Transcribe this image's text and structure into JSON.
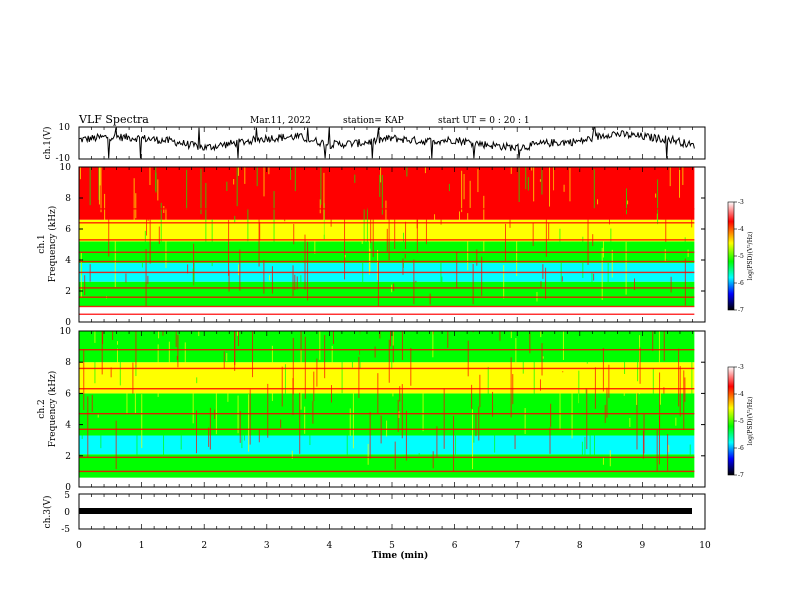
{
  "header": {
    "title": "VLF Spectra",
    "date": "Mar.11, 2022",
    "station": "station= KAP",
    "start": "start  UT =   0  : 20 : 1"
  },
  "colors": {
    "spectrum": [
      "#ffffff",
      "#ff0000",
      "#ffff00",
      "#00ff00",
      "#00ffff",
      "#0000ff",
      "#000000"
    ],
    "trace": "#000000"
  },
  "chart_data": [
    {
      "id": "ch1-waveform",
      "type": "line",
      "ylabel": "ch.1(V)",
      "ylim": [
        -10,
        10
      ],
      "yticks": [
        "10",
        "-10"
      ],
      "xlim": [
        0,
        9.83
      ],
      "x": [
        0,
        0.5,
        1,
        1.5,
        2,
        2.5,
        3,
        3.5,
        4,
        4.5,
        5,
        5.5,
        6,
        6.5,
        7,
        7.5,
        8,
        8.5,
        9,
        9.5,
        9.83
      ],
      "y": [
        2,
        4,
        3,
        1,
        -3,
        0,
        3,
        4,
        -1,
        0,
        3,
        1,
        2,
        -1,
        -3,
        0,
        1,
        6,
        4,
        2,
        -2
      ],
      "description": "noisy signal trace, roughly -6 to +8 V with occasional spikes"
    },
    {
      "id": "ch1-spectrogram",
      "type": "heatmap",
      "ylabel": "ch.1\nFrequency (kHz)",
      "ylim": [
        0,
        10
      ],
      "yticks": [
        "0",
        "2",
        "4",
        "6",
        "8",
        "10"
      ],
      "xlim": [
        0,
        9.83
      ],
      "colorbar": {
        "label": "log(PSD)(V²/Hz)",
        "range": [
          -7,
          -3
        ],
        "ticks": [
          "-3",
          "-4",
          "-5",
          "-6",
          "-7"
        ]
      },
      "bands": [
        {
          "f": [
            0,
            1
          ],
          "color": "#ffffff"
        },
        {
          "f": [
            1,
            2.6
          ],
          "color": "#00ff00"
        },
        {
          "f": [
            2.6,
            3.8
          ],
          "color": "#00ffff"
        },
        {
          "f": [
            3.8,
            5.2
          ],
          "color": "#00ff00"
        },
        {
          "f": [
            5.2,
            6.6
          ],
          "color": "#ffff00"
        },
        {
          "f": [
            6.6,
            10
          ],
          "color": "#ff0000"
        }
      ],
      "lines_khz": [
        0.5,
        1.0,
        1.6,
        2.2,
        3.2,
        3.9,
        4.5,
        5.3,
        6.4,
        7.3
      ]
    },
    {
      "id": "ch2-spectrogram",
      "type": "heatmap",
      "ylabel": "ch.2\nFrequency (kHz)",
      "ylim": [
        0,
        10
      ],
      "yticks": [
        "0",
        "2",
        "4",
        "6",
        "8",
        "10"
      ],
      "xlim": [
        0,
        9.83
      ],
      "colorbar": {
        "label": "log(PSD)(V²/Hz)",
        "range": [
          -7,
          -3
        ],
        "ticks": [
          "-3",
          "-4",
          "-5",
          "-6",
          "-7"
        ]
      },
      "bands": [
        {
          "f": [
            0,
            0.6
          ],
          "color": "#ffffff"
        },
        {
          "f": [
            0.6,
            2.1
          ],
          "color": "#00ff00"
        },
        {
          "f": [
            2.1,
            3.3
          ],
          "color": "#00ffff"
        },
        {
          "f": [
            3.3,
            6.0
          ],
          "color": "#00ff00"
        },
        {
          "f": [
            6.0,
            8.0
          ],
          "color": "#ffff00"
        },
        {
          "f": [
            8.0,
            10
          ],
          "color": "#00ff00"
        }
      ],
      "lines_khz": [
        1.0,
        1.9,
        3.7,
        4.7,
        6.3,
        7.6,
        8.8
      ]
    },
    {
      "id": "ch3-waveform",
      "type": "line",
      "ylabel": "ch.3(V)",
      "ylim": [
        -5,
        5
      ],
      "yticks": [
        "5",
        "0",
        "-5"
      ],
      "xlim": [
        0,
        9.83
      ],
      "x": [
        0,
        9.83
      ],
      "y": [
        -1,
        -1
      ],
      "xlabel": "Time  (min)",
      "xticks": [
        "0",
        "1",
        "2",
        "3",
        "4",
        "5",
        "6",
        "7",
        "8",
        "9",
        "10"
      ],
      "description": "thick flat band near -1 V"
    }
  ]
}
